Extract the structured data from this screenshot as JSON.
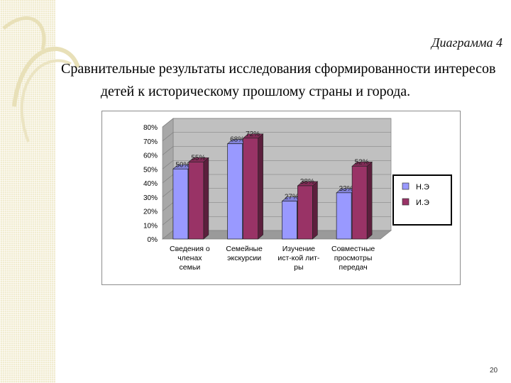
{
  "header": {
    "diagram_label": "Диаграмма 4",
    "title_line1": "Сравнительные результаты исследования сформированности интересов",
    "title_line2": "детей к историческому прошлому страны и города."
  },
  "page_number": "20",
  "colors": {
    "series1": "#9999ff",
    "series2": "#993366",
    "wall": "#c0c0c0",
    "accent": "#f1ecd0"
  },
  "chart_data": {
    "type": "bar",
    "categories": [
      [
        "Сведения о",
        "членах",
        "семьи"
      ],
      [
        "Семейные",
        "экскурсии"
      ],
      [
        "Изучение",
        "ист-кой лит-",
        "ры"
      ],
      [
        "Совместные",
        "просмотры",
        "передач"
      ]
    ],
    "series": [
      {
        "name": "Н.Э",
        "values": [
          50,
          68,
          27,
          33
        ],
        "labels": [
          "50%",
          "68%",
          "27%",
          "33%"
        ]
      },
      {
        "name": "И.Э",
        "values": [
          55,
          72,
          38,
          52
        ],
        "labels": [
          "55%",
          "72%",
          "38%",
          "52%"
        ]
      }
    ],
    "yticks": [
      "0%",
      "10%",
      "20%",
      "30%",
      "40%",
      "50%",
      "60%",
      "70%",
      "80%"
    ],
    "ylim": [
      0,
      80
    ],
    "legend_position": "right",
    "grid": true,
    "style": "3d-clustered-column"
  }
}
